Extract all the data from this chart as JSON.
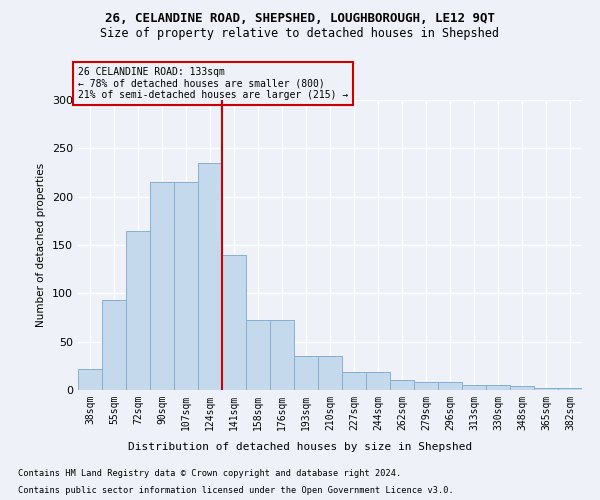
{
  "title1": "26, CELANDINE ROAD, SHEPSHED, LOUGHBOROUGH, LE12 9QT",
  "title2": "Size of property relative to detached houses in Shepshed",
  "xlabel": "Distribution of detached houses by size in Shepshed",
  "ylabel": "Number of detached properties",
  "categories": [
    "38sqm",
    "55sqm",
    "72sqm",
    "90sqm",
    "107sqm",
    "124sqm",
    "141sqm",
    "158sqm",
    "176sqm",
    "193sqm",
    "210sqm",
    "227sqm",
    "244sqm",
    "262sqm",
    "279sqm",
    "296sqm",
    "313sqm",
    "330sqm",
    "348sqm",
    "365sqm",
    "382sqm"
  ],
  "values": [
    22,
    93,
    165,
    215,
    215,
    235,
    140,
    72,
    72,
    35,
    35,
    19,
    19,
    10,
    8,
    8,
    5,
    5,
    4,
    2,
    2
  ],
  "bar_color": "#c5d9ed",
  "bar_edge_color": "#85afd4",
  "vline_x": 5.5,
  "vline_color": "#cc0000",
  "annotation_line1": "26 CELANDINE ROAD: 133sqm",
  "annotation_line2": "← 78% of detached houses are smaller (800)",
  "annotation_line3": "21% of semi-detached houses are larger (215) →",
  "annotation_box_color": "#cc0000",
  "ylim": [
    0,
    300
  ],
  "yticks": [
    0,
    50,
    100,
    150,
    200,
    250,
    300
  ],
  "footer1": "Contains HM Land Registry data © Crown copyright and database right 2024.",
  "footer2": "Contains public sector information licensed under the Open Government Licence v3.0.",
  "background_color": "#eef2f8",
  "grid_color": "#ffffff",
  "title1_fontsize": 9,
  "title2_fontsize": 8.5
}
